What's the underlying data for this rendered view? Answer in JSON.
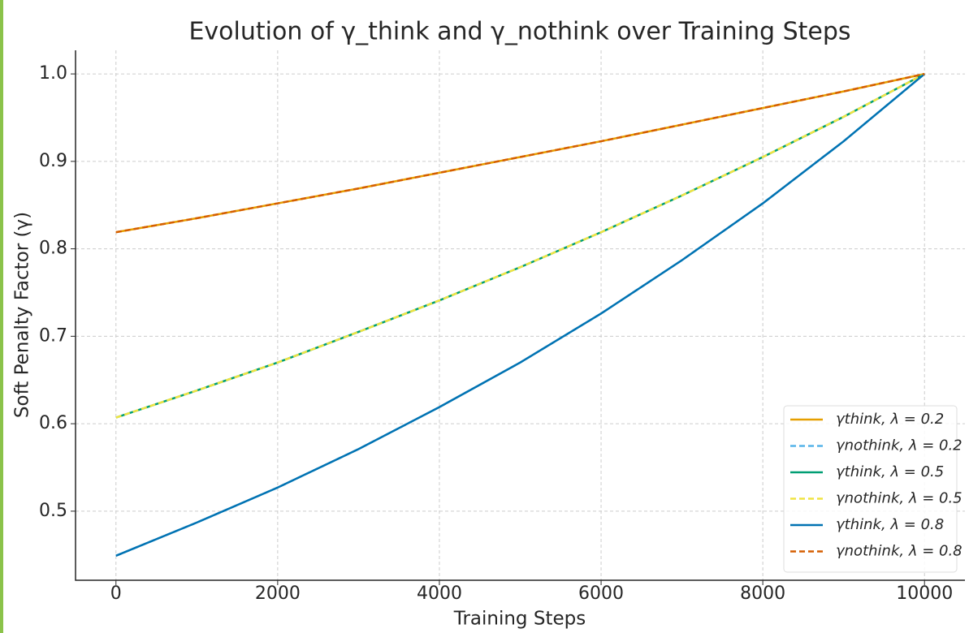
{
  "chart_data": {
    "type": "line",
    "title": "Evolution of γ_think and γ_nothink over Training Steps",
    "x_label": "Training Steps",
    "y_label": "Soft Penalty Factor (γ)",
    "x": [
      0,
      1000,
      2000,
      3000,
      4000,
      5000,
      6000,
      7000,
      8000,
      9000,
      10000
    ],
    "series": [
      {
        "name": "γthink, λ = 0.2",
        "color": "#e69f00",
        "dashed": false,
        "values": [
          0.819,
          0.835,
          0.852,
          0.869,
          0.887,
          0.905,
          0.923,
          0.942,
          0.961,
          0.98,
          1.0
        ]
      },
      {
        "name": "γnothink, λ = 0.2",
        "color": "#56b4e9",
        "dashed": true,
        "values": [
          0.449,
          0.487,
          0.527,
          0.571,
          0.619,
          0.67,
          0.726,
          0.787,
          0.852,
          0.923,
          1.0
        ]
      },
      {
        "name": "γthink, λ = 0.5",
        "color": "#009e73",
        "dashed": false,
        "values": [
          0.607,
          0.638,
          0.67,
          0.705,
          0.741,
          0.779,
          0.819,
          0.861,
          0.905,
          0.951,
          1.0
        ]
      },
      {
        "name": "γnothink, λ = 0.5",
        "color": "#f0e442",
        "dashed": true,
        "values": [
          0.607,
          0.638,
          0.67,
          0.705,
          0.741,
          0.779,
          0.819,
          0.861,
          0.905,
          0.951,
          1.0
        ]
      },
      {
        "name": "γthink, λ = 0.8",
        "color": "#0072b2",
        "dashed": false,
        "values": [
          0.449,
          0.487,
          0.527,
          0.571,
          0.619,
          0.67,
          0.726,
          0.787,
          0.852,
          0.923,
          1.0
        ]
      },
      {
        "name": "γnothink, λ = 0.8",
        "color": "#d55e00",
        "dashed": true,
        "values": [
          0.819,
          0.835,
          0.852,
          0.869,
          0.887,
          0.905,
          0.923,
          0.942,
          0.961,
          0.98,
          1.0
        ]
      }
    ],
    "xlim": [
      -500,
      10500
    ],
    "xticks": [
      0,
      2000,
      4000,
      6000,
      8000,
      10000
    ],
    "ylim": [
      0.421,
      1.027
    ],
    "yticks": [
      0.5,
      0.6,
      0.7,
      0.8,
      0.9,
      {
        "value": 1.0,
        "label": "1.0"
      }
    ],
    "grid": true,
    "legend": "lower right"
  }
}
